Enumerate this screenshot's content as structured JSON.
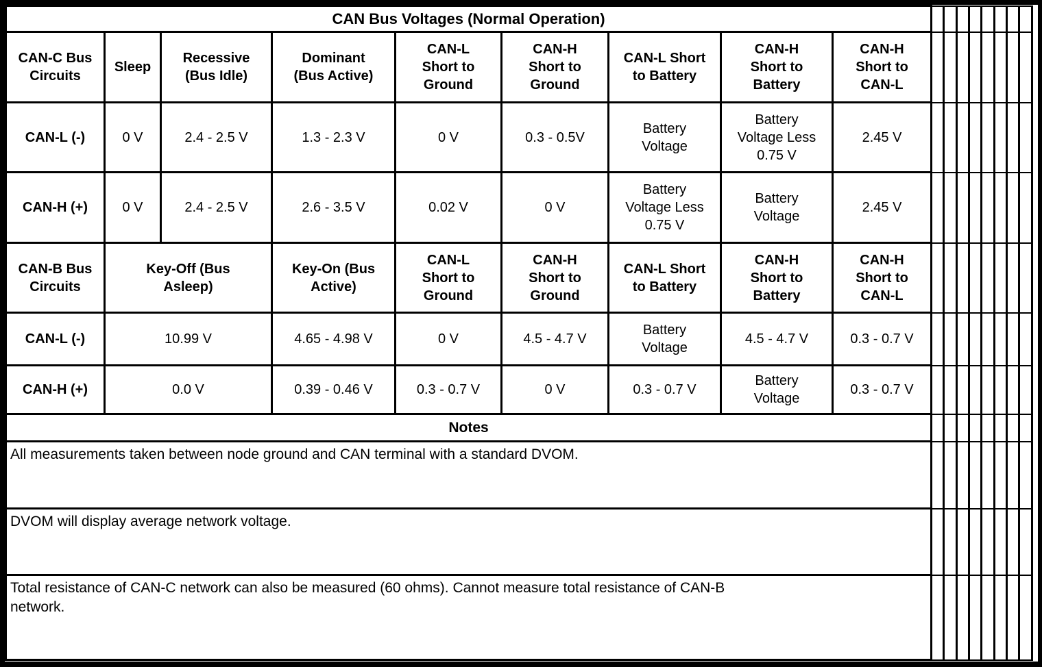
{
  "title": "CAN Bus Voltages (Normal Operation)",
  "can_c_section": {
    "headers": [
      "CAN-C Bus\nCircuits",
      "Sleep",
      "Recessive\n(Bus Idle)",
      "Dominant\n(Bus Active)",
      "CAN-L\nShort to\nGround",
      "CAN-H\nShort to\nGround",
      "CAN-L Short\nto Battery",
      "CAN-H\nShort to\nBattery",
      "CAN-H\nShort to\nCAN-L"
    ],
    "rows": [
      {
        "label": "CAN-L (-)",
        "values": [
          "0 V",
          "2.4 - 2.5 V",
          "1.3 - 2.3 V",
          "0 V",
          "0.3 - 0.5V",
          "Battery\nVoltage",
          "Battery\nVoltage Less\n0.75 V",
          "2.45 V"
        ]
      },
      {
        "label": "CAN-H (+)",
        "values": [
          "0 V",
          "2.4 - 2.5 V",
          "2.6 - 3.5 V",
          "0.02 V",
          "0 V",
          "Battery\nVoltage Less\n0.75 V",
          "Battery\nVoltage",
          "2.45 V"
        ]
      }
    ]
  },
  "can_b_section": {
    "headers": [
      "CAN-B Bus\nCircuits",
      "Key-Off (Bus\nAsleep)",
      "Key-On (Bus\nActive)",
      "CAN-L\nShort to\nGround",
      "CAN-H\nShort to\nGround",
      "CAN-L Short\nto Battery",
      "CAN-H\nShort to\nBattery",
      "CAN-H\nShort to\nCAN-L"
    ],
    "rows": [
      {
        "label": "CAN-L (-)",
        "values": [
          "10.99 V",
          "4.65 - 4.98 V",
          "0 V",
          "4.5 - 4.7 V",
          "Battery\nVoltage",
          "4.5 - 4.7 V",
          "0.3 - 0.7 V"
        ]
      },
      {
        "label": "CAN-H (+)",
        "values": [
          "0.0 V",
          "0.39 - 0.46 V",
          "0.3 - 0.7 V",
          "0 V",
          "0.3 - 0.7 V",
          "Battery\nVoltage",
          "0.3 - 0.7 V"
        ]
      }
    ]
  },
  "notes_section": {
    "header": "Notes",
    "items": [
      "All measurements taken between node ground and CAN terminal with a standard DVOM.",
      "DVOM will display average network voltage.",
      "Total resistance of CAN-C network can also be measured (60 ohms). Cannot measure total resistance of CAN-B\nnetwork."
    ]
  }
}
